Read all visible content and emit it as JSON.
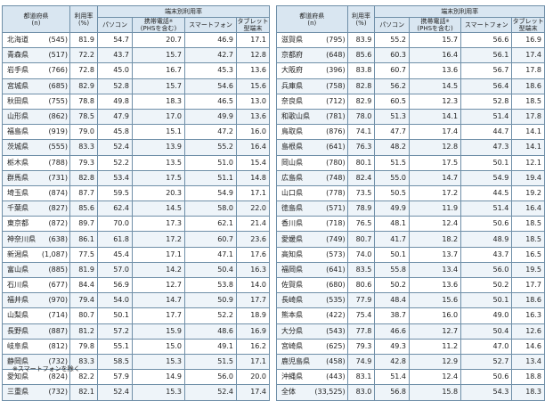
{
  "headers": {
    "pref": "都道府県",
    "n": "(n)",
    "rate": "利用率",
    "rate_unit": "(%)",
    "group": "端末別利用率",
    "pc": "パソコン",
    "phone_a": "携帯電話",
    "phone_mark": "※",
    "phone_b": "(PHSを含む)",
    "smart": "スマートフォン",
    "tablet_a": "タブレット",
    "tablet_b": "型端末"
  },
  "left_rows": [
    {
      "pref": "北海道",
      "n": "(545)",
      "rate": "81.9",
      "pc": "54.7",
      "phone": "20.7",
      "smart": "46.9",
      "tablet": "17.1"
    },
    {
      "pref": "青森県",
      "n": "(517)",
      "rate": "72.2",
      "pc": "43.7",
      "phone": "15.7",
      "smart": "42.7",
      "tablet": "12.8"
    },
    {
      "pref": "岩手県",
      "n": "(766)",
      "rate": "72.8",
      "pc": "45.0",
      "phone": "16.7",
      "smart": "45.3",
      "tablet": "13.6"
    },
    {
      "pref": "宮城県",
      "n": "(685)",
      "rate": "82.9",
      "pc": "52.8",
      "phone": "15.7",
      "smart": "54.6",
      "tablet": "15.6"
    },
    {
      "pref": "秋田県",
      "n": "(755)",
      "rate": "78.8",
      "pc": "49.8",
      "phone": "18.3",
      "smart": "46.5",
      "tablet": "13.0"
    },
    {
      "pref": "山形県",
      "n": "(862)",
      "rate": "78.5",
      "pc": "47.9",
      "phone": "17.0",
      "smart": "49.9",
      "tablet": "13.6"
    },
    {
      "pref": "福島県",
      "n": "(919)",
      "rate": "79.0",
      "pc": "45.8",
      "phone": "15.1",
      "smart": "47.2",
      "tablet": "16.0"
    },
    {
      "pref": "茨城県",
      "n": "(555)",
      "rate": "83.3",
      "pc": "52.4",
      "phone": "13.9",
      "smart": "55.2",
      "tablet": "16.4"
    },
    {
      "pref": "栃木県",
      "n": "(788)",
      "rate": "79.3",
      "pc": "52.2",
      "phone": "13.5",
      "smart": "51.0",
      "tablet": "15.4"
    },
    {
      "pref": "群馬県",
      "n": "(731)",
      "rate": "82.8",
      "pc": "53.4",
      "phone": "17.5",
      "smart": "51.1",
      "tablet": "14.8"
    },
    {
      "pref": "埼玉県",
      "n": "(874)",
      "rate": "87.7",
      "pc": "59.5",
      "phone": "20.3",
      "smart": "54.9",
      "tablet": "17.1"
    },
    {
      "pref": "千葉県",
      "n": "(827)",
      "rate": "85.6",
      "pc": "62.4",
      "phone": "14.5",
      "smart": "58.0",
      "tablet": "22.0"
    },
    {
      "pref": "東京都",
      "n": "(872)",
      "rate": "89.7",
      "pc": "70.0",
      "phone": "17.3",
      "smart": "62.1",
      "tablet": "21.4"
    },
    {
      "pref": "神奈川県",
      "n": "(638)",
      "rate": "86.1",
      "pc": "61.8",
      "phone": "17.2",
      "smart": "60.7",
      "tablet": "23.6"
    },
    {
      "pref": "新潟県",
      "n": "(1,087)",
      "rate": "77.5",
      "pc": "45.4",
      "phone": "17.1",
      "smart": "47.1",
      "tablet": "17.6"
    },
    {
      "pref": "富山県",
      "n": "(885)",
      "rate": "81.9",
      "pc": "57.0",
      "phone": "14.2",
      "smart": "50.4",
      "tablet": "16.3"
    },
    {
      "pref": "石川県",
      "n": "(677)",
      "rate": "84.4",
      "pc": "56.9",
      "phone": "12.7",
      "smart": "53.8",
      "tablet": "14.0"
    },
    {
      "pref": "福井県",
      "n": "(970)",
      "rate": "79.4",
      "pc": "54.0",
      "phone": "14.7",
      "smart": "50.9",
      "tablet": "17.7"
    },
    {
      "pref": "山梨県",
      "n": "(714)",
      "rate": "80.7",
      "pc": "50.1",
      "phone": "17.7",
      "smart": "52.2",
      "tablet": "18.9"
    },
    {
      "pref": "長野県",
      "n": "(887)",
      "rate": "81.2",
      "pc": "57.2",
      "phone": "15.9",
      "smart": "48.6",
      "tablet": "16.9"
    },
    {
      "pref": "岐阜県",
      "n": "(812)",
      "rate": "79.8",
      "pc": "55.1",
      "phone": "15.0",
      "smart": "49.1",
      "tablet": "16.2"
    },
    {
      "pref": "静岡県",
      "n": "(732)",
      "rate": "83.3",
      "pc": "58.5",
      "phone": "15.3",
      "smart": "51.5",
      "tablet": "17.1"
    },
    {
      "pref": "愛知県",
      "n": "(824)",
      "rate": "82.2",
      "pc": "57.9",
      "phone": "14.9",
      "smart": "56.0",
      "tablet": "20.0"
    },
    {
      "pref": "三重県",
      "n": "(732)",
      "rate": "82.1",
      "pc": "52.4",
      "phone": "15.3",
      "smart": "52.4",
      "tablet": "17.4"
    }
  ],
  "right_rows": [
    {
      "pref": "滋賀県",
      "n": "(795)",
      "rate": "83.9",
      "pc": "55.2",
      "phone": "15.7",
      "smart": "56.6",
      "tablet": "16.9"
    },
    {
      "pref": "京都府",
      "n": "(648)",
      "rate": "85.6",
      "pc": "60.3",
      "phone": "16.4",
      "smart": "56.1",
      "tablet": "17.4"
    },
    {
      "pref": "大阪府",
      "n": "(396)",
      "rate": "83.8",
      "pc": "60.7",
      "phone": "13.6",
      "smart": "56.7",
      "tablet": "17.8"
    },
    {
      "pref": "兵庫県",
      "n": "(758)",
      "rate": "82.8",
      "pc": "56.2",
      "phone": "14.5",
      "smart": "56.4",
      "tablet": "18.6"
    },
    {
      "pref": "奈良県",
      "n": "(712)",
      "rate": "82.9",
      "pc": "60.5",
      "phone": "12.3",
      "smart": "52.8",
      "tablet": "18.5"
    },
    {
      "pref": "和歌山県",
      "n": "(781)",
      "rate": "78.0",
      "pc": "51.3",
      "phone": "14.1",
      "smart": "51.4",
      "tablet": "17.8"
    },
    {
      "pref": "鳥取県",
      "n": "(876)",
      "rate": "74.1",
      "pc": "47.7",
      "phone": "17.4",
      "smart": "44.7",
      "tablet": "14.1"
    },
    {
      "pref": "島根県",
      "n": "(641)",
      "rate": "76.3",
      "pc": "48.2",
      "phone": "12.8",
      "smart": "47.3",
      "tablet": "14.1"
    },
    {
      "pref": "岡山県",
      "n": "(780)",
      "rate": "80.1",
      "pc": "51.5",
      "phone": "17.5",
      "smart": "50.1",
      "tablet": "12.1"
    },
    {
      "pref": "広島県",
      "n": "(748)",
      "rate": "82.4",
      "pc": "55.0",
      "phone": "14.7",
      "smart": "54.9",
      "tablet": "19.4"
    },
    {
      "pref": "山口県",
      "n": "(778)",
      "rate": "73.5",
      "pc": "50.5",
      "phone": "17.2",
      "smart": "44.5",
      "tablet": "19.2"
    },
    {
      "pref": "徳島県",
      "n": "(571)",
      "rate": "78.9",
      "pc": "49.9",
      "phone": "11.9",
      "smart": "51.4",
      "tablet": "16.4"
    },
    {
      "pref": "香川県",
      "n": "(718)",
      "rate": "76.5",
      "pc": "48.1",
      "phone": "12.4",
      "smart": "50.6",
      "tablet": "18.5"
    },
    {
      "pref": "愛媛県",
      "n": "(749)",
      "rate": "80.7",
      "pc": "41.7",
      "phone": "18.2",
      "smart": "48.9",
      "tablet": "18.5"
    },
    {
      "pref": "高知県",
      "n": "(573)",
      "rate": "74.0",
      "pc": "50.1",
      "phone": "13.7",
      "smart": "43.7",
      "tablet": "16.5"
    },
    {
      "pref": "福岡県",
      "n": "(641)",
      "rate": "83.5",
      "pc": "55.8",
      "phone": "13.4",
      "smart": "56.0",
      "tablet": "19.5"
    },
    {
      "pref": "佐賀県",
      "n": "(680)",
      "rate": "80.6",
      "pc": "50.2",
      "phone": "13.6",
      "smart": "50.2",
      "tablet": "17.7"
    },
    {
      "pref": "長崎県",
      "n": "(535)",
      "rate": "77.9",
      "pc": "48.4",
      "phone": "15.6",
      "smart": "50.1",
      "tablet": "18.6"
    },
    {
      "pref": "熊本県",
      "n": "(422)",
      "rate": "75.4",
      "pc": "38.7",
      "phone": "16.0",
      "smart": "49.0",
      "tablet": "16.3"
    },
    {
      "pref": "大分県",
      "n": "(543)",
      "rate": "77.8",
      "pc": "46.6",
      "phone": "12.7",
      "smart": "50.4",
      "tablet": "12.6"
    },
    {
      "pref": "宮崎県",
      "n": "(625)",
      "rate": "79.3",
      "pc": "49.3",
      "phone": "11.2",
      "smart": "47.0",
      "tablet": "14.6"
    },
    {
      "pref": "鹿児島県",
      "n": "(458)",
      "rate": "74.9",
      "pc": "42.8",
      "phone": "12.9",
      "smart": "52.7",
      "tablet": "13.4"
    },
    {
      "pref": "沖縄県",
      "n": "(443)",
      "rate": "83.1",
      "pc": "51.4",
      "phone": "12.4",
      "smart": "50.6",
      "tablet": "18.8"
    },
    {
      "pref": "全体",
      "n": "(33,525)",
      "rate": "83.0",
      "pc": "56.8",
      "phone": "15.8",
      "smart": "54.3",
      "tablet": "18.3"
    }
  ],
  "note": "※スマートフォンを除く"
}
